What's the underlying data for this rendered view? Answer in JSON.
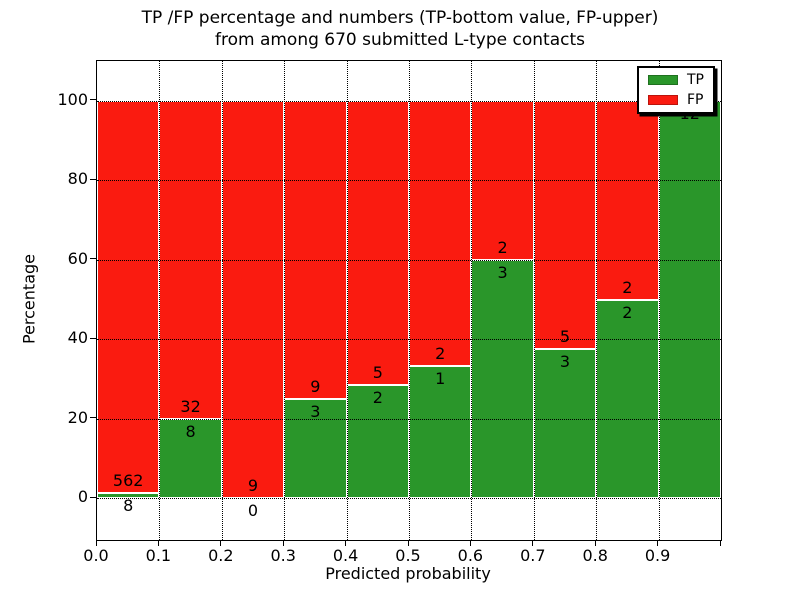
{
  "title": {
    "line1": "TP /FP percentage and numbers (TP-bottom value, FP-upper)",
    "line2": "from among 670 submitted L-type contacts"
  },
  "axes": {
    "xlabel": "Predicted probability",
    "ylabel": "Percentage"
  },
  "legend": {
    "tp_label": "TP",
    "fp_label": "FP",
    "position": "upper right"
  },
  "colors": {
    "tp_green": "#2a962a",
    "fp_red": "#fa1b10",
    "grid": "#000000",
    "frame": "#000000",
    "text": "#000000",
    "background": "#ffffff"
  },
  "chart_data": {
    "type": "bar",
    "stacked": true,
    "title": "TP /FP percentage and numbers (TP-bottom value, FP-upper) from among 670 submitted L-type contacts",
    "xlabel": "Predicted probability",
    "ylabel": "Percentage",
    "total_submitted_contacts": 670,
    "bins": [
      "0.0-0.1",
      "0.1-0.2",
      "0.2-0.3",
      "0.3-0.4",
      "0.4-0.5",
      "0.5-0.6",
      "0.6-0.7",
      "0.7-0.8",
      "0.8-0.9",
      "0.9-1.0"
    ],
    "series": [
      {
        "name": "TP",
        "stack_position": "bottom",
        "color": "#2a962a",
        "counts": [
          8,
          8,
          0,
          3,
          2,
          1,
          3,
          3,
          2,
          12
        ],
        "pct": [
          1.4,
          20,
          0,
          25,
          28.6,
          33.3,
          60,
          37.5,
          50,
          100
        ]
      },
      {
        "name": "FP",
        "stack_position": "top",
        "color": "#fa1b10",
        "counts": [
          562,
          32,
          9,
          9,
          5,
          2,
          2,
          5,
          2,
          null
        ],
        "pct": [
          98.6,
          80,
          100,
          75,
          71.4,
          66.7,
          40,
          62.5,
          50,
          0
        ]
      }
    ],
    "xticks": [
      "0.0",
      "0.1",
      "0.2",
      "0.3",
      "0.4",
      "0.5",
      "0.6",
      "0.7",
      "0.8",
      "0.9"
    ],
    "yticks": [
      0,
      20,
      40,
      60,
      80,
      100
    ],
    "xlim": [
      0.0,
      1.0
    ],
    "ylim": [
      -10.5,
      110
    ],
    "grid": {
      "visible": true,
      "style": "dotted"
    },
    "legend_position": "upper right"
  }
}
